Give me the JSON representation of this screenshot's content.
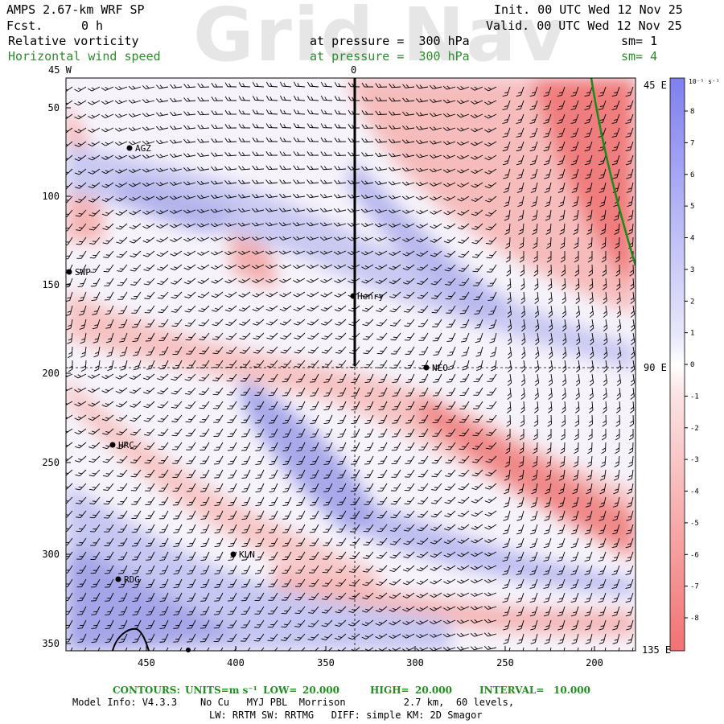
{
  "watermark": "Grid Nav",
  "header": {
    "model": "AMPS 2.67-km WRF SP",
    "fcst_label": "Fcst.",
    "fcst_value": "0 h",
    "init": "Init. 00 UTC Wed 12 Nov 25",
    "valid": "Valid. 00 UTC Wed 12 Nov 25",
    "field1": "Relative vorticity",
    "field1_level": "at pressure =  300 hPa",
    "field1_sm": "sm= 1",
    "field2": "Horizontal wind speed",
    "field2_level": "at pressure =  300 hPa",
    "field2_sm": "sm= 4"
  },
  "map": {
    "top_labels": [
      "45 W",
      "0"
    ],
    "right_labels": [
      "45 E",
      "90 E",
      "135 E"
    ],
    "y_ticks": [
      "50",
      "100",
      "150",
      "200",
      "250",
      "300",
      "350"
    ],
    "x_ticks": [
      "450",
      "400",
      "350",
      "300",
      "250",
      "200"
    ],
    "stations": [
      "AGZ",
      "SWP",
      "Henry",
      "NEO",
      "HRC",
      "KLN",
      "RDG"
    ]
  },
  "colorbar": {
    "unit": "10⁻⁵ s⁻¹",
    "labels": [
      "8",
      "7",
      "6",
      "5",
      "4",
      "3",
      "2",
      "1",
      "0",
      "-1",
      "-2",
      "-3",
      "-4",
      "-5",
      "-6",
      "-7",
      "-8"
    ],
    "colors": {
      "blue_dark": "#7f7fef",
      "blue_light": "#e8e8fb",
      "red_light": "#fbe4e4",
      "red_dark": "#f27272"
    }
  },
  "footer": {
    "contours_label": "CONTOURS:",
    "units_label": "UNITS=m s⁻¹",
    "low_label": "LOW=",
    "low": "20.000",
    "high_label": "HIGH=",
    "high": "20.000",
    "interval_label": "INTERVAL=",
    "interval": "10.000",
    "model_info": "Model Info: V4.3.3    No Cu   MYJ PBL  Morrison          2.7 km,  60 levels,",
    "physics": "LW: RRTM SW: RRTMG   DIFF: simple KM: 2D Smagor"
  }
}
